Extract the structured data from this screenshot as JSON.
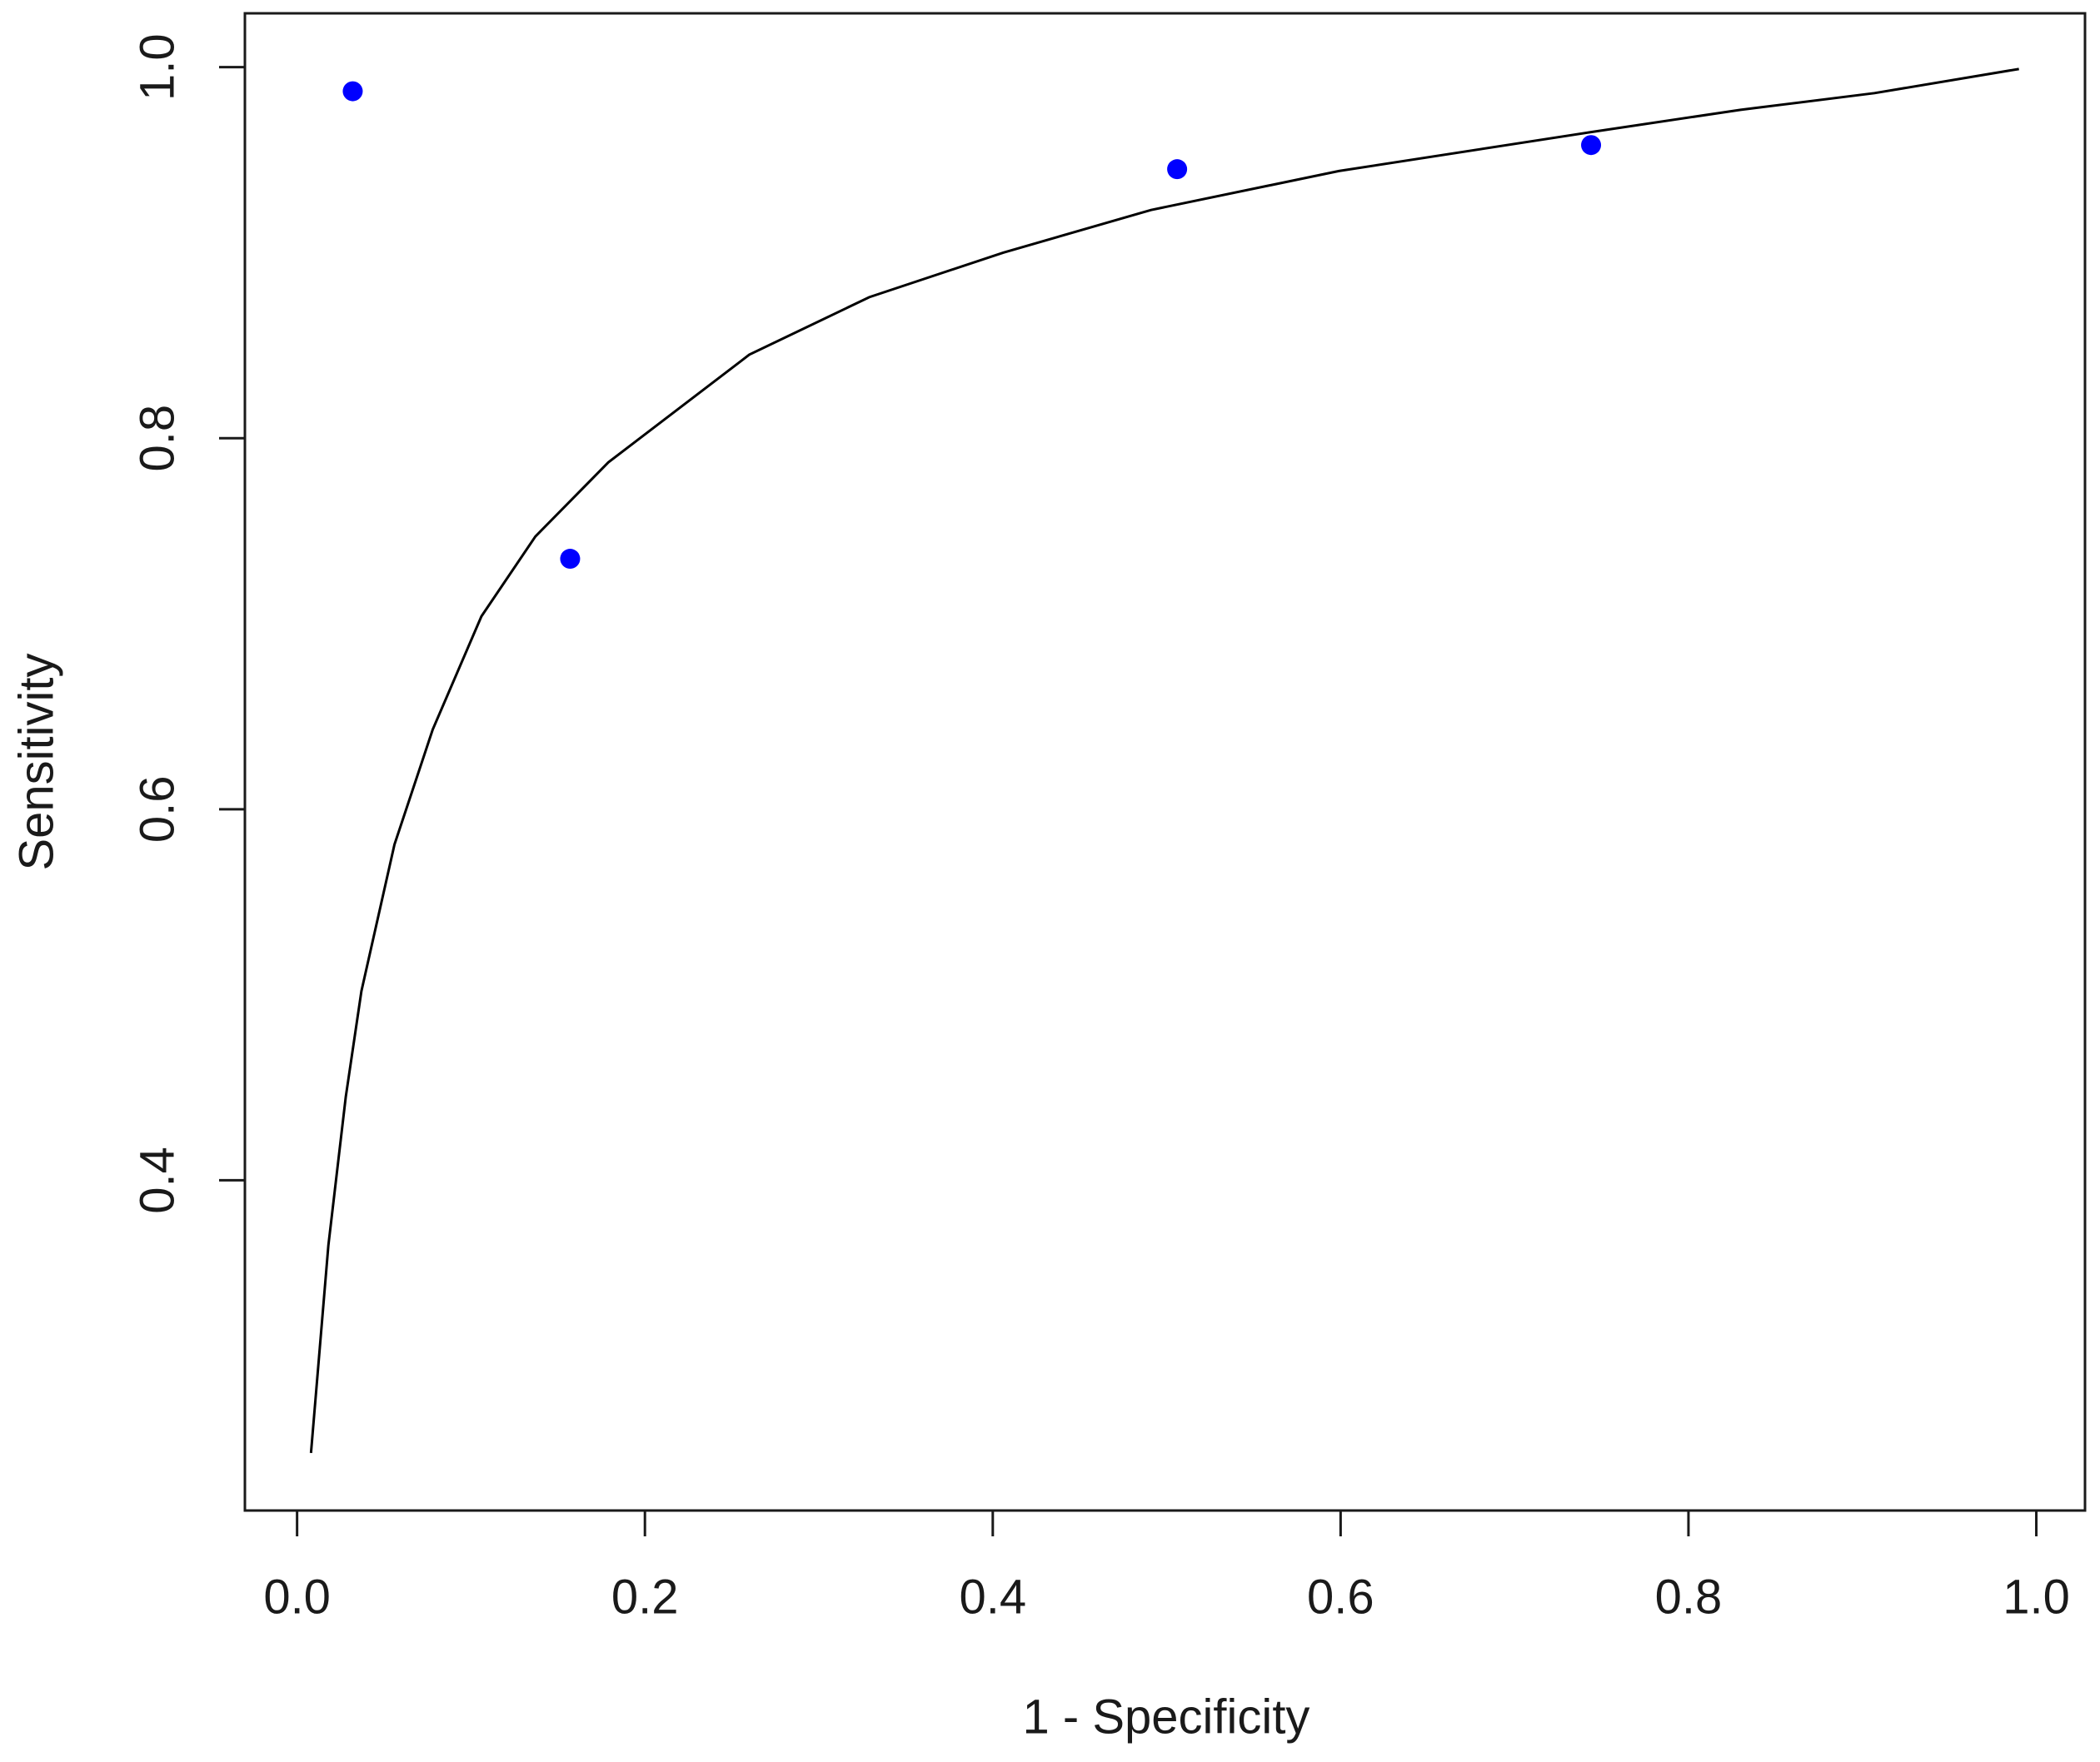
{
  "chart_data": {
    "type": "scatter",
    "x_label": "1 - Specificity",
    "y_label": "Sensitivity",
    "xlim": [
      -0.03,
      1.028
    ],
    "ylim": [
      0.222,
      1.029
    ],
    "xticks": [
      {
        "value": 0,
        "label": "0.0"
      },
      0.2,
      0.4,
      0.6,
      0.8,
      {
        "value": 1,
        "label": "1.0"
      }
    ],
    "yticks": [
      0.4,
      0.6,
      0.8,
      {
        "value": 1,
        "label": "1.0"
      }
    ],
    "series": [
      {
        "type": "scatter",
        "color": "#0000ff",
        "x": [
          0.032,
          0.157,
          0.506,
          0.744
        ],
        "values": [
          0.987,
          0.735,
          0.945,
          0.958
        ]
      },
      {
        "type": "line",
        "color": "#000000",
        "x": [
          0.008,
          0.018,
          0.028,
          0.037,
          0.056,
          0.078,
          0.106,
          0.137,
          0.179,
          0.26,
          0.329,
          0.406,
          0.491,
          0.599,
          0.744,
          0.83,
          0.907,
          0.99
        ],
        "values": [
          0.253,
          0.365,
          0.445,
          0.502,
          0.581,
          0.643,
          0.704,
          0.747,
          0.787,
          0.845,
          0.876,
          0.9,
          0.923,
          0.944,
          0.965,
          0.977,
          0.986,
          0.999
        ]
      }
    ]
  }
}
